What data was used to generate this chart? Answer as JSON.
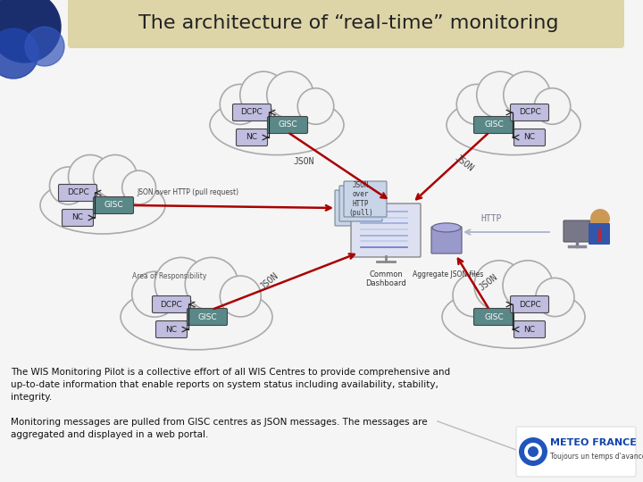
{
  "title": "The architecture of “real-time” monitoring",
  "title_bg": "#ddd5a8",
  "bg_color": "#f5f5f5",
  "title_fontsize": 16,
  "body_text1": "The WIS Monitoring Pilot is a collective effort of all WIS Centres to provide comprehensive and\nup-to-date information that enable reports on system status including availability, stability,\nintegrity.",
  "body_text2": "Monitoring messages are pulled from GISC centres as JSON messages. The messages are\naggregated and displayed in a web portal.",
  "cloud_color": "#aaaaaa",
  "cloud_fill": "#f8f8f8",
  "dcpc_fill": "#c0bde0",
  "gisc_fill": "#5a8888",
  "nc_fill": "#c0bde0",
  "box_text_color_light": "#ffffff",
  "box_text_color_dark": "#222222",
  "arrow_color": "#aa0000",
  "http_arrow_color": "#b0b8d0",
  "json_label_color": "#444444",
  "dashboard_label": "Common\nDashboard",
  "aggregate_label": "Aggregate JSON files",
  "json_over_http_label": "JSON over HTTP (pull request)",
  "http_label": "HTTP"
}
